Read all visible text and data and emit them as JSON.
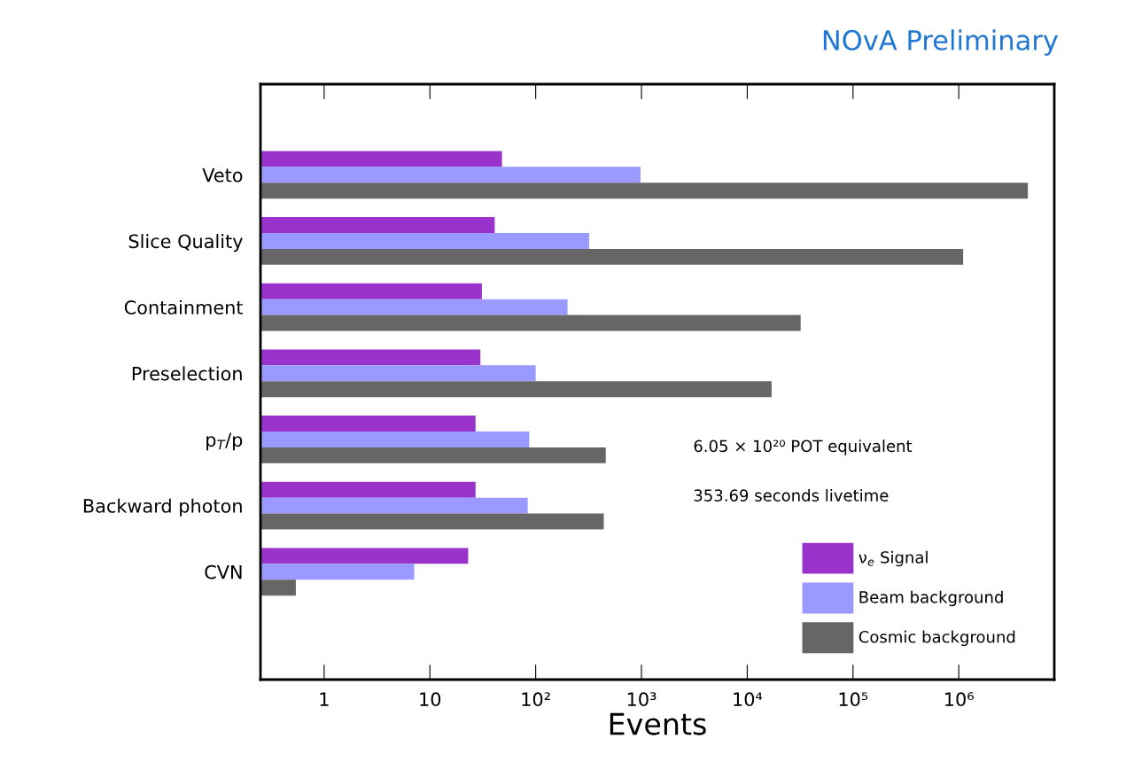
{
  "chart_data": {
    "type": "bar",
    "orientation": "horizontal",
    "title": "NOvA Preliminary",
    "xlabel": "Events",
    "categories": [
      "Veto",
      "Slice Quality",
      "Containment",
      "Preselection",
      "p$_{T}$/p",
      "Backward photon",
      "CVN"
    ],
    "series": [
      {
        "name": "ν$_{e}$ Signal",
        "color": "#9933cc",
        "values": [
          48,
          41,
          31,
          30,
          27,
          27,
          23
        ]
      },
      {
        "name": "Beam background",
        "color": "#9999ff",
        "values": [
          980,
          320,
          200,
          100,
          87,
          84,
          7.1
        ]
      },
      {
        "name": "Cosmic background",
        "color": "#666666",
        "values": [
          4500000,
          1100000,
          32000,
          17000,
          460,
          440,
          0.54
        ]
      }
    ],
    "log": "x",
    "xlim": [
      0.25,
      8000000
    ],
    "xticks": [
      1,
      10,
      {
        "value": 100,
        "label": "10²"
      },
      {
        "value": 1000,
        "label": "10³"
      },
      {
        "value": 10000,
        "label": "10⁴"
      },
      {
        "value": 100000,
        "label": "10⁵"
      },
      {
        "value": 1000000,
        "label": "10⁶"
      }
    ],
    "annotations": [
      "6.05 × 10²⁰ POT equivalent",
      "353.69 seconds livetime"
    ],
    "legend": "lower right",
    "grid": false
  }
}
